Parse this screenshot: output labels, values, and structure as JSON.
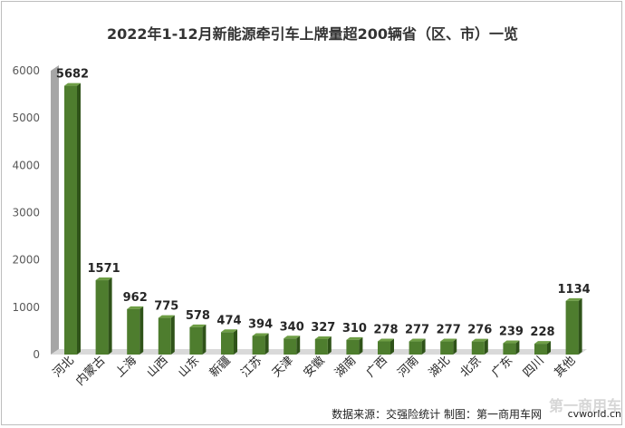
{
  "chart_data": {
    "type": "bar",
    "title": "2022年1-12月新能源牵引车上牌量超200辆省（区、市）一览",
    "categories": [
      "河北",
      "内蒙古",
      "上海",
      "山西",
      "山东",
      "新疆",
      "江苏",
      "天津",
      "安徽",
      "湖南",
      "广西",
      "河南",
      "湖北",
      "北京",
      "广东",
      "四川",
      "其他"
    ],
    "values": [
      5682,
      1571,
      962,
      775,
      578,
      474,
      394,
      340,
      327,
      310,
      278,
      277,
      277,
      276,
      239,
      228,
      1134
    ],
    "value_labels": [
      "5682",
      "1571",
      "962",
      "775",
      "578",
      "474",
      "394",
      "340",
      "327",
      "310",
      "278",
      "277",
      "277",
      "276",
      "239",
      "228",
      "1134"
    ],
    "ylim": [
      0,
      6000
    ],
    "yticks": [
      0,
      1000,
      2000,
      3000,
      4000,
      5000,
      6000
    ],
    "ytick_labels": [
      "0",
      "1000",
      "2000",
      "3000",
      "4000",
      "5000",
      "6000"
    ],
    "grid": false,
    "legend": "none",
    "bar_color": "#4e7d2e"
  },
  "source_text": "数据来源：交强险统计  制图：第一商用车网",
  "watermark": {
    "text": "第一商用车",
    "url": "cvworld.cn"
  }
}
